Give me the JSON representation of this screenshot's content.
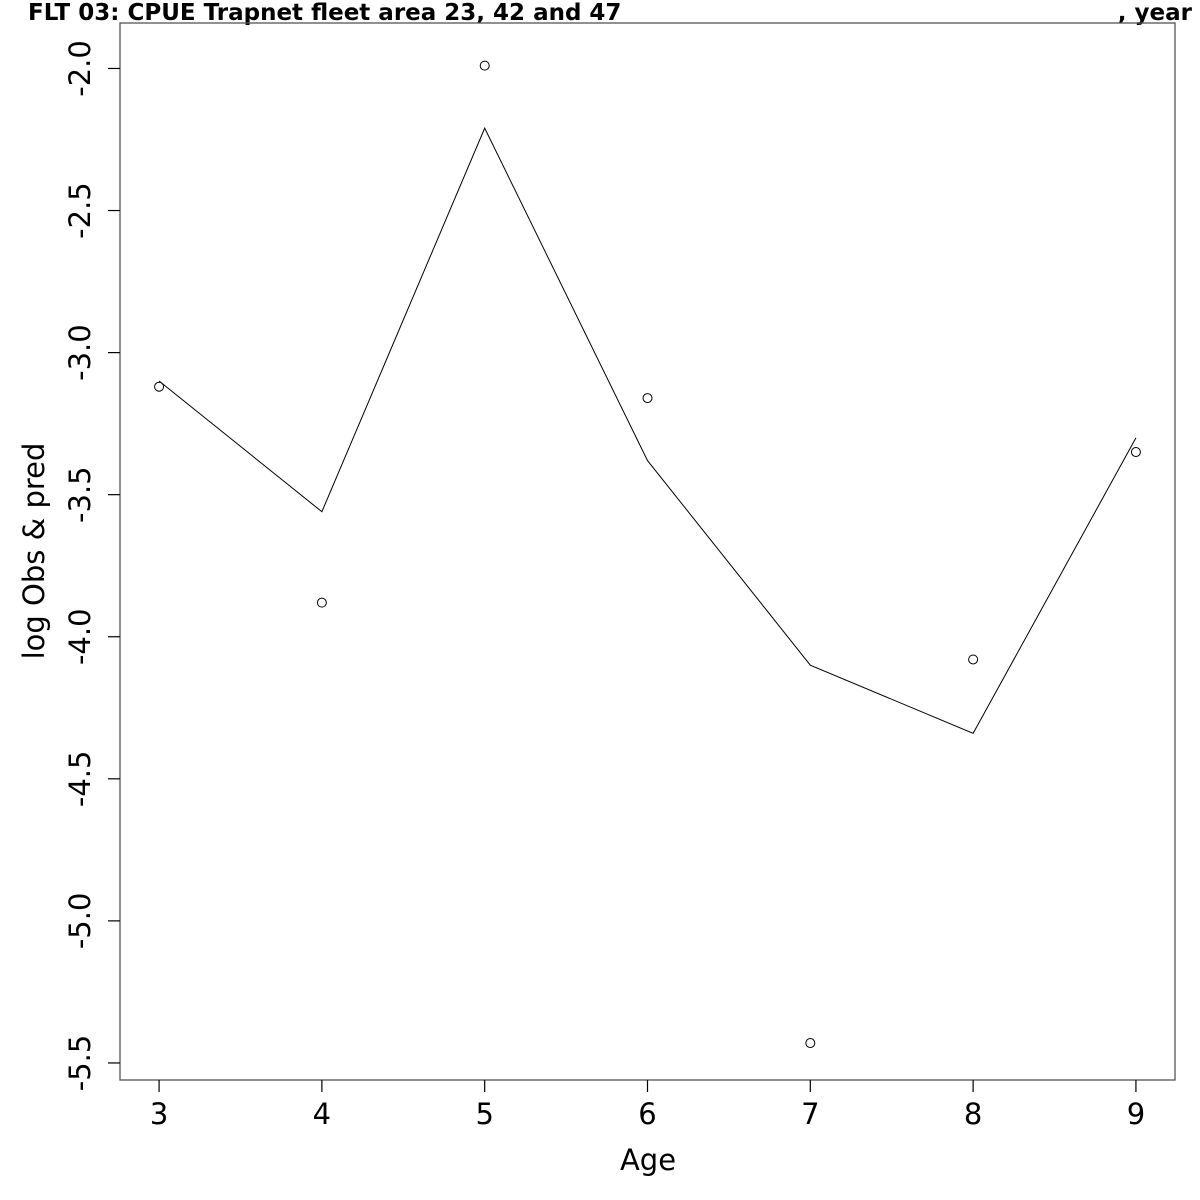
{
  "title_left": "FLT 03: CPUE Trapnet fleet area 23, 42 and 47",
  "title_right": ", year",
  "chart_data": {
    "type": "line",
    "title": "FLT 03: CPUE Trapnet fleet area 23, 42 and 47 , year",
    "xlabel": "Age",
    "ylabel": "log Obs & pred",
    "xlim": [
      2.76,
      9.24
    ],
    "ylim": [
      -5.56,
      -1.84
    ],
    "x_ticks": [
      3,
      4,
      5,
      6,
      7,
      8,
      9
    ],
    "y_ticks": [
      -2.0,
      -2.5,
      -3.0,
      -3.5,
      -4.0,
      -4.5,
      -5.0,
      -5.5
    ],
    "x_tick_labels": [
      "3",
      "4",
      "5",
      "6",
      "7",
      "8",
      "9"
    ],
    "y_tick_labels": [
      "-2.0",
      "-2.5",
      "-3.0",
      "-3.5",
      "-4.0",
      "-4.5",
      "-5.0",
      "-5.5"
    ],
    "grid": false,
    "series": [
      {
        "style": "line",
        "color": "#000000",
        "x": [
          3,
          4,
          5,
          6,
          7,
          8,
          9
        ],
        "y": [
          -3.1,
          -3.56,
          -2.21,
          -3.38,
          -4.1,
          -4.34,
          -3.3
        ]
      },
      {
        "style": "points",
        "marker": "open-circle",
        "color": "#000000",
        "x": [
          3,
          4,
          5,
          6,
          7,
          8,
          9
        ],
        "y": [
          -3.12,
          -3.88,
          -1.99,
          -3.16,
          -5.43,
          -4.08,
          -3.35
        ]
      }
    ]
  }
}
